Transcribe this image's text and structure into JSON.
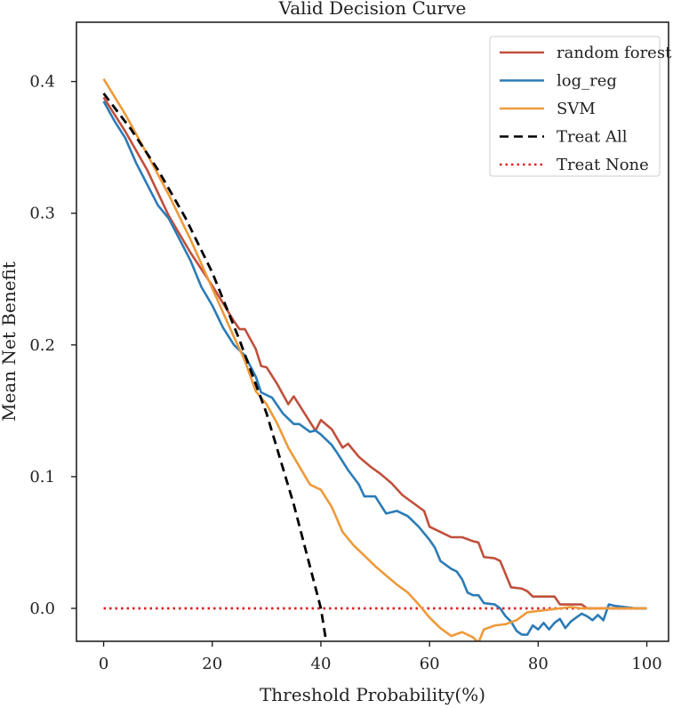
{
  "chart_data": {
    "type": "line",
    "title": "Valid Decision Curve",
    "xlabel": "Threshold Probability(%)",
    "ylabel": "Mean Net Benefit",
    "xlim": [
      -5,
      104
    ],
    "ylim": [
      -0.025,
      0.445
    ],
    "xticks": [
      0,
      20,
      40,
      60,
      80,
      100
    ],
    "xtick_labels": [
      "0",
      "20",
      "40",
      "60",
      "80",
      "100"
    ],
    "yticks": [
      0.0,
      0.1,
      0.2,
      0.3,
      0.4
    ],
    "ytick_labels": [
      "0.0",
      "0.1",
      "0.2",
      "0.3",
      "0.4"
    ],
    "legend_position": "top-right",
    "series": [
      {
        "name": "random forest",
        "color": "#c0503c",
        "style": "solid",
        "points": [
          [
            0,
            0.388
          ],
          [
            4,
            0.362
          ],
          [
            8,
            0.333
          ],
          [
            12,
            0.298
          ],
          [
            16,
            0.27
          ],
          [
            20,
            0.245
          ],
          [
            24,
            0.218
          ],
          [
            25,
            0.212
          ],
          [
            26,
            0.212
          ],
          [
            28,
            0.197
          ],
          [
            29,
            0.184
          ],
          [
            30,
            0.183
          ],
          [
            32,
            0.17
          ],
          [
            34,
            0.155
          ],
          [
            35,
            0.161
          ],
          [
            37,
            0.148
          ],
          [
            39,
            0.135
          ],
          [
            40,
            0.143
          ],
          [
            42,
            0.136
          ],
          [
            44,
            0.122
          ],
          [
            45,
            0.125
          ],
          [
            47,
            0.115
          ],
          [
            49,
            0.108
          ],
          [
            51,
            0.102
          ],
          [
            53,
            0.095
          ],
          [
            55,
            0.086
          ],
          [
            57,
            0.08
          ],
          [
            59,
            0.074
          ],
          [
            60,
            0.062
          ],
          [
            62,
            0.058
          ],
          [
            64,
            0.054
          ],
          [
            66,
            0.054
          ],
          [
            68,
            0.051
          ],
          [
            69,
            0.05
          ],
          [
            70,
            0.039
          ],
          [
            72,
            0.038
          ],
          [
            73,
            0.036
          ],
          [
            75,
            0.016
          ],
          [
            77,
            0.015
          ],
          [
            78,
            0.013
          ],
          [
            79,
            0.009
          ],
          [
            81,
            0.009
          ],
          [
            83,
            0.009
          ],
          [
            84,
            0.003
          ],
          [
            86,
            0.003
          ],
          [
            88,
            0.003
          ],
          [
            89,
            0.0
          ],
          [
            100,
            0.0
          ]
        ]
      },
      {
        "name": "log_reg",
        "color": "#2c7bb6",
        "style": "solid",
        "points": [
          [
            0,
            0.385
          ],
          [
            2,
            0.37
          ],
          [
            4,
            0.357
          ],
          [
            6,
            0.338
          ],
          [
            8,
            0.322
          ],
          [
            10,
            0.306
          ],
          [
            12,
            0.296
          ],
          [
            14,
            0.28
          ],
          [
            16,
            0.264
          ],
          [
            18,
            0.244
          ],
          [
            20,
            0.23
          ],
          [
            22,
            0.213
          ],
          [
            24,
            0.2
          ],
          [
            26,
            0.192
          ],
          [
            28,
            0.176
          ],
          [
            29,
            0.164
          ],
          [
            31,
            0.16
          ],
          [
            33,
            0.148
          ],
          [
            35,
            0.14
          ],
          [
            36,
            0.14
          ],
          [
            38,
            0.134
          ],
          [
            39,
            0.135
          ],
          [
            40,
            0.132
          ],
          [
            42,
            0.124
          ],
          [
            43,
            0.118
          ],
          [
            45,
            0.105
          ],
          [
            47,
            0.094
          ],
          [
            48,
            0.085
          ],
          [
            50,
            0.085
          ],
          [
            52,
            0.072
          ],
          [
            54,
            0.074
          ],
          [
            56,
            0.07
          ],
          [
            58,
            0.062
          ],
          [
            60,
            0.052
          ],
          [
            61,
            0.046
          ],
          [
            62,
            0.036
          ],
          [
            64,
            0.03
          ],
          [
            65,
            0.028
          ],
          [
            66,
            0.022
          ],
          [
            67,
            0.012
          ],
          [
            68,
            0.01
          ],
          [
            69,
            0.01
          ],
          [
            70,
            0.004
          ],
          [
            72,
            0.003
          ],
          [
            73,
            0.0
          ],
          [
            74,
            -0.006
          ],
          [
            75,
            -0.01
          ],
          [
            76,
            -0.017
          ],
          [
            77,
            -0.02
          ],
          [
            78,
            -0.02
          ],
          [
            79,
            -0.013
          ],
          [
            80,
            -0.016
          ],
          [
            81,
            -0.011
          ],
          [
            82,
            -0.016
          ],
          [
            83,
            -0.011
          ],
          [
            84,
            -0.008
          ],
          [
            85,
            -0.015
          ],
          [
            86,
            -0.01
          ],
          [
            87,
            -0.007
          ],
          [
            88,
            -0.004
          ],
          [
            89,
            -0.006
          ],
          [
            90,
            -0.009
          ],
          [
            91,
            -0.005
          ],
          [
            92,
            -0.009
          ],
          [
            93,
            0.003
          ],
          [
            94,
            0.002
          ],
          [
            96,
            0.001
          ],
          [
            98,
            0.0
          ],
          [
            100,
            0.0
          ]
        ]
      },
      {
        "name": "SVM",
        "color": "#ee9a3a",
        "style": "solid",
        "points": [
          [
            0,
            0.402
          ],
          [
            4,
            0.375
          ],
          [
            8,
            0.345
          ],
          [
            12,
            0.314
          ],
          [
            16,
            0.28
          ],
          [
            20,
            0.243
          ],
          [
            24,
            0.206
          ],
          [
            26,
            0.188
          ],
          [
            28,
            0.165
          ],
          [
            30,
            0.155
          ],
          [
            32,
            0.14
          ],
          [
            34,
            0.122
          ],
          [
            36,
            0.108
          ],
          [
            38,
            0.094
          ],
          [
            40,
            0.09
          ],
          [
            42,
            0.077
          ],
          [
            44,
            0.058
          ],
          [
            46,
            0.048
          ],
          [
            48,
            0.04
          ],
          [
            50,
            0.032
          ],
          [
            52,
            0.025
          ],
          [
            54,
            0.018
          ],
          [
            56,
            0.012
          ],
          [
            58,
            0.003
          ],
          [
            60,
            -0.007
          ],
          [
            62,
            -0.015
          ],
          [
            64,
            -0.021
          ],
          [
            66,
            -0.018
          ],
          [
            68,
            -0.022
          ],
          [
            69,
            -0.026
          ],
          [
            70,
            -0.016
          ],
          [
            72,
            -0.013
          ],
          [
            74,
            -0.012
          ],
          [
            76,
            -0.009
          ],
          [
            78,
            -0.003
          ],
          [
            80,
            -0.002
          ],
          [
            82,
            -0.001
          ],
          [
            84,
            0.0
          ],
          [
            86,
            0.001
          ],
          [
            88,
            0.0
          ],
          [
            100,
            0.0
          ]
        ]
      },
      {
        "name": "Treat All",
        "color": "#000000",
        "style": "dashed",
        "points": [
          [
            0,
            0.391
          ],
          [
            5,
            0.364
          ],
          [
            10,
            0.333
          ],
          [
            15,
            0.297
          ],
          [
            20,
            0.255
          ],
          [
            25,
            0.204
          ],
          [
            30,
            0.148
          ],
          [
            35,
            0.079
          ],
          [
            40,
            0.0
          ],
          [
            41,
            -0.026
          ]
        ]
      },
      {
        "name": "Treat None",
        "color": "#dd2222",
        "style": "dotted",
        "points": [
          [
            0,
            0.0
          ],
          [
            100,
            0.0
          ]
        ]
      }
    ]
  }
}
